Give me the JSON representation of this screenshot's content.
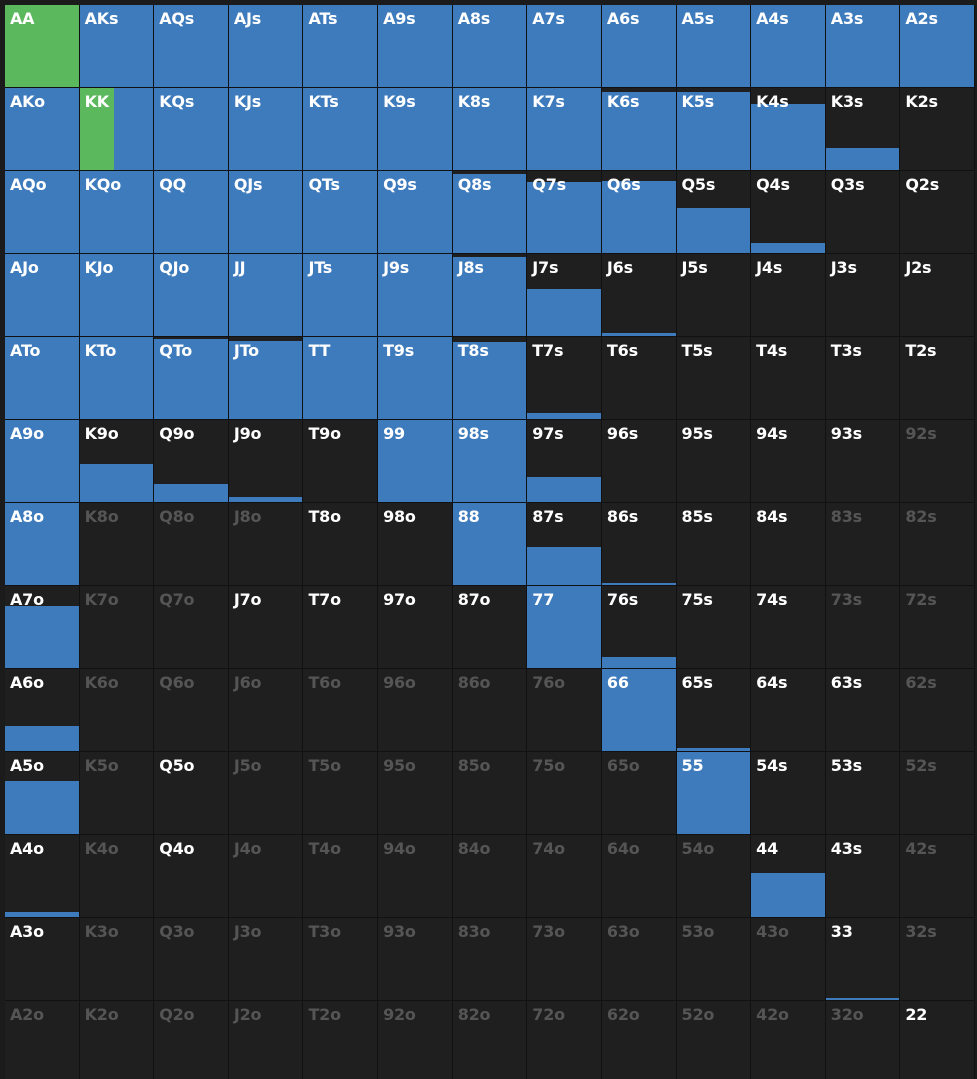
{
  "grid": {
    "rows": [
      [
        {
          "hand": "AA",
          "blue": 0,
          "green": 1
        },
        {
          "hand": "AKs",
          "blue": 1
        },
        {
          "hand": "AQs",
          "blue": 1
        },
        {
          "hand": "AJs",
          "blue": 1
        },
        {
          "hand": "ATs",
          "blue": 1
        },
        {
          "hand": "A9s",
          "blue": 1
        },
        {
          "hand": "A8s",
          "blue": 1
        },
        {
          "hand": "A7s",
          "blue": 1
        },
        {
          "hand": "A6s",
          "blue": 1
        },
        {
          "hand": "A5s",
          "blue": 1
        },
        {
          "hand": "A4s",
          "blue": 1
        },
        {
          "hand": "A3s",
          "blue": 1
        },
        {
          "hand": "A2s",
          "blue": 1
        }
      ],
      [
        {
          "hand": "AKo",
          "blue": 1
        },
        {
          "hand": "KK",
          "blue": 1,
          "green": 0.47
        },
        {
          "hand": "KQs",
          "blue": 1
        },
        {
          "hand": "KJs",
          "blue": 1
        },
        {
          "hand": "KTs",
          "blue": 1
        },
        {
          "hand": "K9s",
          "blue": 1
        },
        {
          "hand": "K8s",
          "blue": 1
        },
        {
          "hand": "K7s",
          "blue": 1
        },
        {
          "hand": "K6s",
          "blue": 0.95
        },
        {
          "hand": "K5s",
          "blue": 0.95
        },
        {
          "hand": "K4s",
          "blue": 0.8
        },
        {
          "hand": "K3s",
          "blue": 0.27
        },
        {
          "hand": "K2s",
          "blue": 0
        }
      ],
      [
        {
          "hand": "AQo",
          "blue": 1
        },
        {
          "hand": "KQo",
          "blue": 1
        },
        {
          "hand": "QQ",
          "blue": 1
        },
        {
          "hand": "QJs",
          "blue": 1
        },
        {
          "hand": "QTs",
          "blue": 1
        },
        {
          "hand": "Q9s",
          "blue": 1
        },
        {
          "hand": "Q8s",
          "blue": 0.96
        },
        {
          "hand": "Q7s",
          "blue": 0.87
        },
        {
          "hand": "Q6s",
          "blue": 0.88
        },
        {
          "hand": "Q5s",
          "blue": 0.55
        },
        {
          "hand": "Q4s",
          "blue": 0.12
        },
        {
          "hand": "Q3s",
          "blue": 0
        },
        {
          "hand": "Q2s",
          "blue": 0
        }
      ],
      [
        {
          "hand": "AJo",
          "blue": 1
        },
        {
          "hand": "KJo",
          "blue": 1
        },
        {
          "hand": "QJo",
          "blue": 1
        },
        {
          "hand": "JJ",
          "blue": 1
        },
        {
          "hand": "JTs",
          "blue": 1
        },
        {
          "hand": "J9s",
          "blue": 1
        },
        {
          "hand": "J8s",
          "blue": 0.96
        },
        {
          "hand": "J7s",
          "blue": 0.57
        },
        {
          "hand": "J6s",
          "blue": 0.04
        },
        {
          "hand": "J5s",
          "blue": 0
        },
        {
          "hand": "J4s",
          "blue": 0
        },
        {
          "hand": "J3s",
          "blue": 0
        },
        {
          "hand": "J2s",
          "blue": 0
        }
      ],
      [
        {
          "hand": "ATo",
          "blue": 1
        },
        {
          "hand": "KTo",
          "blue": 1
        },
        {
          "hand": "QTo",
          "blue": 0.98
        },
        {
          "hand": "JTo",
          "blue": 0.95
        },
        {
          "hand": "TT",
          "blue": 1
        },
        {
          "hand": "T9s",
          "blue": 1
        },
        {
          "hand": "T8s",
          "blue": 0.94
        },
        {
          "hand": "T7s",
          "blue": 0.07
        },
        {
          "hand": "T6s",
          "blue": 0
        },
        {
          "hand": "T5s",
          "blue": 0
        },
        {
          "hand": "T4s",
          "blue": 0
        },
        {
          "hand": "T3s",
          "blue": 0
        },
        {
          "hand": "T2s",
          "blue": 0
        }
      ],
      [
        {
          "hand": "A9o",
          "blue": 1
        },
        {
          "hand": "K9o",
          "blue": 0.46
        },
        {
          "hand": "Q9o",
          "blue": 0.22
        },
        {
          "hand": "J9o",
          "blue": 0.06
        },
        {
          "hand": "T9o",
          "blue": 0
        },
        {
          "hand": "99",
          "blue": 1
        },
        {
          "hand": "98s",
          "blue": 1
        },
        {
          "hand": "97s",
          "blue": 0.31
        },
        {
          "hand": "96s",
          "blue": 0
        },
        {
          "hand": "95s",
          "blue": 0
        },
        {
          "hand": "94s",
          "blue": 0
        },
        {
          "hand": "93s",
          "blue": 0
        },
        {
          "hand": "92s",
          "blue": 0,
          "muted": true
        }
      ],
      [
        {
          "hand": "A8o",
          "blue": 1
        },
        {
          "hand": "K8o",
          "blue": 0,
          "muted": true
        },
        {
          "hand": "Q8o",
          "blue": 0,
          "muted": true
        },
        {
          "hand": "J8o",
          "blue": 0,
          "muted": true
        },
        {
          "hand": "T8o",
          "blue": 0
        },
        {
          "hand": "98o",
          "blue": 0
        },
        {
          "hand": "88",
          "blue": 1
        },
        {
          "hand": "87s",
          "blue": 0.46
        },
        {
          "hand": "86s",
          "blue": 0.02
        },
        {
          "hand": "85s",
          "blue": 0
        },
        {
          "hand": "84s",
          "blue": 0
        },
        {
          "hand": "83s",
          "blue": 0,
          "muted": true
        },
        {
          "hand": "82s",
          "blue": 0,
          "muted": true
        }
      ],
      [
        {
          "hand": "A7o",
          "blue": 0.76
        },
        {
          "hand": "K7o",
          "blue": 0,
          "muted": true
        },
        {
          "hand": "Q7o",
          "blue": 0,
          "muted": true
        },
        {
          "hand": "J7o",
          "blue": 0
        },
        {
          "hand": "T7o",
          "blue": 0
        },
        {
          "hand": "97o",
          "blue": 0
        },
        {
          "hand": "87o",
          "blue": 0
        },
        {
          "hand": "77",
          "blue": 1
        },
        {
          "hand": "76s",
          "blue": 0.14
        },
        {
          "hand": "75s",
          "blue": 0
        },
        {
          "hand": "74s",
          "blue": 0
        },
        {
          "hand": "73s",
          "blue": 0,
          "muted": true
        },
        {
          "hand": "72s",
          "blue": 0,
          "muted": true
        }
      ],
      [
        {
          "hand": "A6o",
          "blue": 0.31
        },
        {
          "hand": "K6o",
          "blue": 0,
          "muted": true
        },
        {
          "hand": "Q6o",
          "blue": 0,
          "muted": true
        },
        {
          "hand": "J6o",
          "blue": 0,
          "muted": true
        },
        {
          "hand": "T6o",
          "blue": 0,
          "muted": true
        },
        {
          "hand": "96o",
          "blue": 0,
          "muted": true
        },
        {
          "hand": "86o",
          "blue": 0,
          "muted": true
        },
        {
          "hand": "76o",
          "blue": 0,
          "muted": true
        },
        {
          "hand": "66",
          "blue": 1
        },
        {
          "hand": "65s",
          "blue": 0.04
        },
        {
          "hand": "64s",
          "blue": 0
        },
        {
          "hand": "63s",
          "blue": 0
        },
        {
          "hand": "62s",
          "blue": 0,
          "muted": true
        }
      ],
      [
        {
          "hand": "A5o",
          "blue": 0.65
        },
        {
          "hand": "K5o",
          "blue": 0,
          "muted": true
        },
        {
          "hand": "Q5o",
          "blue": 0
        },
        {
          "hand": "J5o",
          "blue": 0,
          "muted": true
        },
        {
          "hand": "T5o",
          "blue": 0,
          "muted": true
        },
        {
          "hand": "95o",
          "blue": 0,
          "muted": true
        },
        {
          "hand": "85o",
          "blue": 0,
          "muted": true
        },
        {
          "hand": "75o",
          "blue": 0,
          "muted": true
        },
        {
          "hand": "65o",
          "blue": 0,
          "muted": true
        },
        {
          "hand": "55",
          "blue": 1
        },
        {
          "hand": "54s",
          "blue": 0
        },
        {
          "hand": "53s",
          "blue": 0
        },
        {
          "hand": "52s",
          "blue": 0,
          "muted": true
        }
      ],
      [
        {
          "hand": "A4o",
          "blue": 0.06
        },
        {
          "hand": "K4o",
          "blue": 0,
          "muted": true
        },
        {
          "hand": "Q4o",
          "blue": 0
        },
        {
          "hand": "J4o",
          "blue": 0,
          "muted": true
        },
        {
          "hand": "T4o",
          "blue": 0,
          "muted": true
        },
        {
          "hand": "94o",
          "blue": 0,
          "muted": true
        },
        {
          "hand": "84o",
          "blue": 0,
          "muted": true
        },
        {
          "hand": "74o",
          "blue": 0,
          "muted": true
        },
        {
          "hand": "64o",
          "blue": 0,
          "muted": true
        },
        {
          "hand": "54o",
          "blue": 0,
          "muted": true
        },
        {
          "hand": "44",
          "blue": 0.54
        },
        {
          "hand": "43s",
          "blue": 0
        },
        {
          "hand": "42s",
          "blue": 0,
          "muted": true
        }
      ],
      [
        {
          "hand": "A3o",
          "blue": 0
        },
        {
          "hand": "K3o",
          "blue": 0,
          "muted": true
        },
        {
          "hand": "Q3o",
          "blue": 0,
          "muted": true
        },
        {
          "hand": "J3o",
          "blue": 0,
          "muted": true
        },
        {
          "hand": "T3o",
          "blue": 0,
          "muted": true
        },
        {
          "hand": "93o",
          "blue": 0,
          "muted": true
        },
        {
          "hand": "83o",
          "blue": 0,
          "muted": true
        },
        {
          "hand": "73o",
          "blue": 0,
          "muted": true
        },
        {
          "hand": "63o",
          "blue": 0,
          "muted": true
        },
        {
          "hand": "53o",
          "blue": 0,
          "muted": true
        },
        {
          "hand": "43o",
          "blue": 0,
          "muted": true
        },
        {
          "hand": "33",
          "blue": 0.02
        },
        {
          "hand": "32s",
          "blue": 0,
          "muted": true
        }
      ],
      [
        {
          "hand": "A2o",
          "blue": 0,
          "muted": true
        },
        {
          "hand": "K2o",
          "blue": 0,
          "muted": true
        },
        {
          "hand": "Q2o",
          "blue": 0,
          "muted": true
        },
        {
          "hand": "J2o",
          "blue": 0,
          "muted": true
        },
        {
          "hand": "T2o",
          "blue": 0,
          "muted": true
        },
        {
          "hand": "92o",
          "blue": 0,
          "muted": true
        },
        {
          "hand": "82o",
          "blue": 0,
          "muted": true
        },
        {
          "hand": "72o",
          "blue": 0,
          "muted": true
        },
        {
          "hand": "62o",
          "blue": 0,
          "muted": true
        },
        {
          "hand": "52o",
          "blue": 0,
          "muted": true
        },
        {
          "hand": "42o",
          "blue": 0,
          "muted": true
        },
        {
          "hand": "32o",
          "blue": 0,
          "muted": true
        },
        {
          "hand": "22",
          "blue": 0
        }
      ]
    ]
  }
}
